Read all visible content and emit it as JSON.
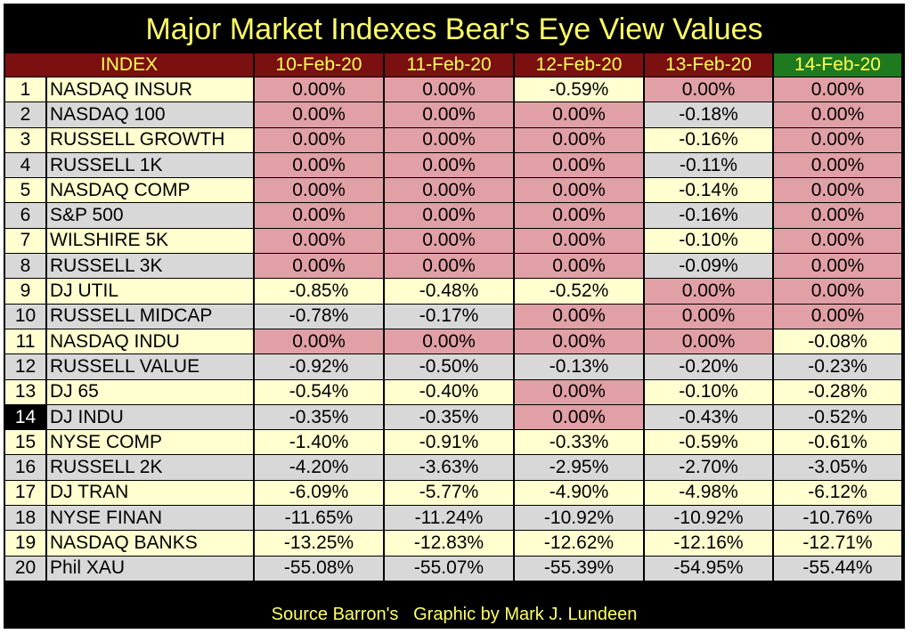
{
  "chart_data": {
    "type": "table",
    "title": "Major Market Indexes Bear's Eye View Values",
    "columns": [
      "INDEX",
      "10-Feb-20",
      "11-Feb-20",
      "12-Feb-20",
      "13-Feb-20",
      "14-Feb-20"
    ],
    "highlight_column": "14-Feb-20",
    "highlight_rank": "14",
    "rows": [
      {
        "rank": "1",
        "name": "NASDAQ INSUR",
        "values": [
          "0.00%",
          "0.00%",
          "-0.59%",
          "0.00%",
          "0.00%"
        ]
      },
      {
        "rank": "2",
        "name": "NASDAQ 100",
        "values": [
          "0.00%",
          "0.00%",
          "0.00%",
          "-0.18%",
          "0.00%"
        ]
      },
      {
        "rank": "3",
        "name": "RUSSELL GROWTH",
        "values": [
          "0.00%",
          "0.00%",
          "0.00%",
          "-0.16%",
          "0.00%"
        ]
      },
      {
        "rank": "4",
        "name": "RUSSELL 1K",
        "values": [
          "0.00%",
          "0.00%",
          "0.00%",
          "-0.11%",
          "0.00%"
        ]
      },
      {
        "rank": "5",
        "name": "NASDAQ COMP",
        "values": [
          "0.00%",
          "0.00%",
          "0.00%",
          "-0.14%",
          "0.00%"
        ]
      },
      {
        "rank": "6",
        "name": "S&P 500",
        "values": [
          "0.00%",
          "0.00%",
          "0.00%",
          "-0.16%",
          "0.00%"
        ]
      },
      {
        "rank": "7",
        "name": "WILSHIRE 5K",
        "values": [
          "0.00%",
          "0.00%",
          "0.00%",
          "-0.10%",
          "0.00%"
        ]
      },
      {
        "rank": "8",
        "name": "RUSSELL 3K",
        "values": [
          "0.00%",
          "0.00%",
          "0.00%",
          "-0.09%",
          "0.00%"
        ]
      },
      {
        "rank": "9",
        "name": "DJ  UTIL",
        "values": [
          "-0.85%",
          "-0.48%",
          "-0.52%",
          "0.00%",
          "0.00%"
        ]
      },
      {
        "rank": "10",
        "name": "RUSSELL MIDCAP",
        "values": [
          "-0.78%",
          "-0.17%",
          "0.00%",
          "0.00%",
          "0.00%"
        ]
      },
      {
        "rank": "11",
        "name": "NASDAQ INDU",
        "values": [
          "0.00%",
          "0.00%",
          "0.00%",
          "0.00%",
          "-0.08%"
        ]
      },
      {
        "rank": "12",
        "name": "RUSSELL VALUE",
        "values": [
          "-0.92%",
          "-0.50%",
          "-0.13%",
          "-0.20%",
          "-0.23%"
        ]
      },
      {
        "rank": "13",
        "name": "DJ  65",
        "values": [
          "-0.54%",
          "-0.40%",
          "0.00%",
          "-0.10%",
          "-0.28%"
        ]
      },
      {
        "rank": "14",
        "name": "DJ  INDU",
        "values": [
          "-0.35%",
          "-0.35%",
          "0.00%",
          "-0.43%",
          "-0.52%"
        ]
      },
      {
        "rank": "15",
        "name": "NYSE COMP",
        "values": [
          "-1.40%",
          "-0.91%",
          "-0.33%",
          "-0.59%",
          "-0.61%"
        ]
      },
      {
        "rank": "16",
        "name": "RUSSELL 2K",
        "values": [
          "-4.20%",
          "-3.63%",
          "-2.95%",
          "-2.70%",
          "-3.05%"
        ]
      },
      {
        "rank": "17",
        "name": "DJ  TRAN",
        "values": [
          "-6.09%",
          "-5.77%",
          "-4.90%",
          "-4.98%",
          "-6.12%"
        ]
      },
      {
        "rank": "18",
        "name": "NYSE FINAN",
        "values": [
          "-11.65%",
          "-11.24%",
          "-10.92%",
          "-10.92%",
          "-10.76%"
        ]
      },
      {
        "rank": "19",
        "name": "NASDAQ BANKS",
        "values": [
          "-13.25%",
          "-12.83%",
          "-12.62%",
          "-12.16%",
          "-12.71%"
        ]
      },
      {
        "rank": "20",
        "name": "Phil XAU",
        "values": [
          "-55.08%",
          "-55.07%",
          "-55.39%",
          "-54.95%",
          "-55.44%"
        ]
      }
    ],
    "source": "Source Barron's   Graphic by Mark J. Lundeen"
  },
  "colors": {
    "background": "#000000",
    "title_text": "#ffff66",
    "header_bg": "#7a1010",
    "header_today_bg": "#1f7a1f",
    "row_odd_bg": "#ffffd0",
    "row_even_bg": "#d8d8d8",
    "all_time_high_bg": "#e1a0a5"
  }
}
